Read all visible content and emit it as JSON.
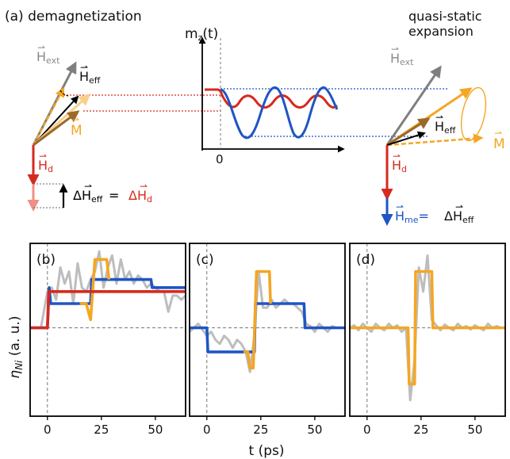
{
  "colors": {
    "gray": "#a9a9a9",
    "gray_dark": "#7f7f7f",
    "black": "#000000",
    "orange": "#f5a623",
    "orange_light": "#f8d08a",
    "brown": "#9b6a2a",
    "red": "#d62a1e",
    "red_light": "#ef8f86",
    "blue": "#1f55c4",
    "signal_gray": "#bdbdbd"
  },
  "top": {
    "panel_label": "(a) demagnetization",
    "right_title_line1": "quasi-static",
    "right_title_line2": "expansion",
    "h_ext": "H",
    "h_ext_sub": "ext",
    "h_eff": "H",
    "h_eff_sub": "eff",
    "m_label": "M",
    "h_d": "H",
    "h_d_sub": "d",
    "delta_eq_left": "ΔH",
    "delta_eq_left_sub": "eff",
    "delta_eq_eq": " = ",
    "delta_eq_right": "ΔH",
    "delta_eq_right_sub": "d",
    "h_me": "H",
    "h_me_sub": "me",
    "h_me_eq": "= ",
    "h_me_rhs": "ΔH",
    "h_me_rhs_sub": "eff",
    "mz_label": "m",
    "mz_sub": "z",
    "mz_paren": "(t)",
    "mz_zero": "0"
  },
  "chart_data": [
    {
      "type": "line",
      "panel": "(b)",
      "xlabel": "t (ps)",
      "ylabel": "η",
      "ylabel_sub": "Ni",
      "ylabel_units": "(a. u.)",
      "xticks": [
        0,
        25,
        50
      ],
      "xlim": [
        -8,
        64
      ],
      "ylim": [
        -1.1,
        1.05
      ],
      "series": [
        {
          "color": "signal_gray",
          "x": [
            -6,
            -3,
            0,
            2,
            4,
            6,
            8,
            10,
            12,
            14,
            16,
            18,
            20,
            22,
            24,
            26,
            28,
            30,
            32,
            34,
            36,
            38,
            40,
            42,
            44,
            46,
            48,
            50,
            52,
            54,
            56,
            58,
            60,
            62,
            64
          ],
          "y": [
            0,
            0,
            0.45,
            0.5,
            0.35,
            0.75,
            0.55,
            0.7,
            0.3,
            0.8,
            0.5,
            0.45,
            0.6,
            0.7,
            0.95,
            0.5,
            0.75,
            0.9,
            0.55,
            0.85,
            0.6,
            0.7,
            0.55,
            0.65,
            0.6,
            0.5,
            0.55,
            0.5,
            0.45,
            0.45,
            0.2,
            0.4,
            0.4,
            0.35,
            0.4
          ]
        },
        {
          "color": "blue",
          "x": [
            -8,
            0,
            0.8,
            1.5,
            20,
            20.5,
            48,
            48.5,
            64
          ],
          "y": [
            0,
            0,
            0.5,
            0.3,
            0.3,
            0.6,
            0.6,
            0.5,
            0.5
          ]
        },
        {
          "color": "orange",
          "x": [
            15,
            18,
            20,
            22,
            23.5,
            25,
            27.5,
            28.5
          ],
          "y": [
            0.3,
            0.3,
            0.1,
            0.85,
            0.85,
            0.85,
            0.85,
            0.6
          ]
        },
        {
          "color": "red",
          "x": [
            -8,
            0,
            0.6,
            64
          ],
          "y": [
            0,
            0,
            0.45,
            0.45
          ]
        }
      ]
    },
    {
      "type": "line",
      "panel": "(c)",
      "xticks": [
        0,
        25,
        50
      ],
      "xlim": [
        -8,
        64
      ],
      "ylim": [
        -1.1,
        1.05
      ],
      "series": [
        {
          "color": "signal_gray",
          "x": [
            -8,
            -4,
            0,
            2,
            4,
            6,
            8,
            10,
            12,
            14,
            16,
            18,
            20,
            22,
            24,
            26,
            28,
            30,
            32,
            34,
            36,
            38,
            40,
            42,
            44,
            46,
            48,
            50,
            52,
            54,
            56,
            58,
            60,
            62,
            64
          ],
          "y": [
            -0.05,
            0.05,
            -0.1,
            -0.05,
            -0.15,
            -0.2,
            -0.1,
            -0.15,
            -0.25,
            -0.15,
            -0.2,
            -0.3,
            -0.55,
            -0.1,
            0.7,
            0.25,
            0.25,
            0.35,
            0.25,
            0.3,
            0.35,
            0.3,
            0.3,
            0.25,
            0.2,
            0.05,
            0.02,
            -0.05,
            0.05,
            0.0,
            -0.05,
            0.02,
            0.0,
            0.0,
            0.0
          ]
        },
        {
          "color": "blue",
          "x": [
            -8,
            0,
            0.5,
            22,
            22.5,
            45,
            45.5,
            64
          ],
          "y": [
            0,
            0,
            -0.3,
            -0.3,
            0.3,
            0.3,
            0,
            0
          ]
        },
        {
          "color": "orange",
          "x": [
            17,
            19,
            20,
            21.5,
            23,
            24,
            29,
            29.5
          ],
          "y": [
            -0.3,
            -0.3,
            -0.5,
            -0.5,
            0.7,
            0.7,
            0.7,
            0.3
          ]
        }
      ]
    },
    {
      "type": "line",
      "panel": "(d)",
      "xticks": [
        0,
        25,
        50
      ],
      "xlim": [
        -8,
        64
      ],
      "ylim": [
        -1.1,
        1.05
      ],
      "series": [
        {
          "color": "signal_gray",
          "x": [
            -8,
            -6,
            -4,
            -2,
            0,
            2,
            4,
            6,
            8,
            10,
            12,
            14,
            16,
            18,
            20,
            22,
            24,
            26,
            28,
            30,
            32,
            34,
            36,
            38,
            40,
            42,
            44,
            46,
            48,
            50,
            52,
            54,
            56,
            58,
            60,
            62,
            64
          ],
          "y": [
            0,
            0.03,
            -0.03,
            0.05,
            0.0,
            -0.05,
            0.05,
            0.0,
            -0.03,
            0.05,
            0.0,
            0.03,
            -0.05,
            0.0,
            -0.9,
            -0.4,
            0.75,
            0.45,
            0.9,
            0.1,
            0.03,
            -0.03,
            0.04,
            0.0,
            -0.03,
            0.05,
            0.0,
            0.02,
            -0.02,
            0.03,
            0.0,
            -0.03,
            0.05,
            0.0,
            0.02,
            0.0,
            0.0
          ]
        },
        {
          "color": "orange",
          "x": [
            -8,
            19,
            19.5,
            22,
            22.5,
            30,
            30.5,
            64
          ],
          "y": [
            0,
            0,
            -0.7,
            -0.7,
            0.7,
            0.7,
            0,
            0
          ]
        }
      ]
    }
  ]
}
